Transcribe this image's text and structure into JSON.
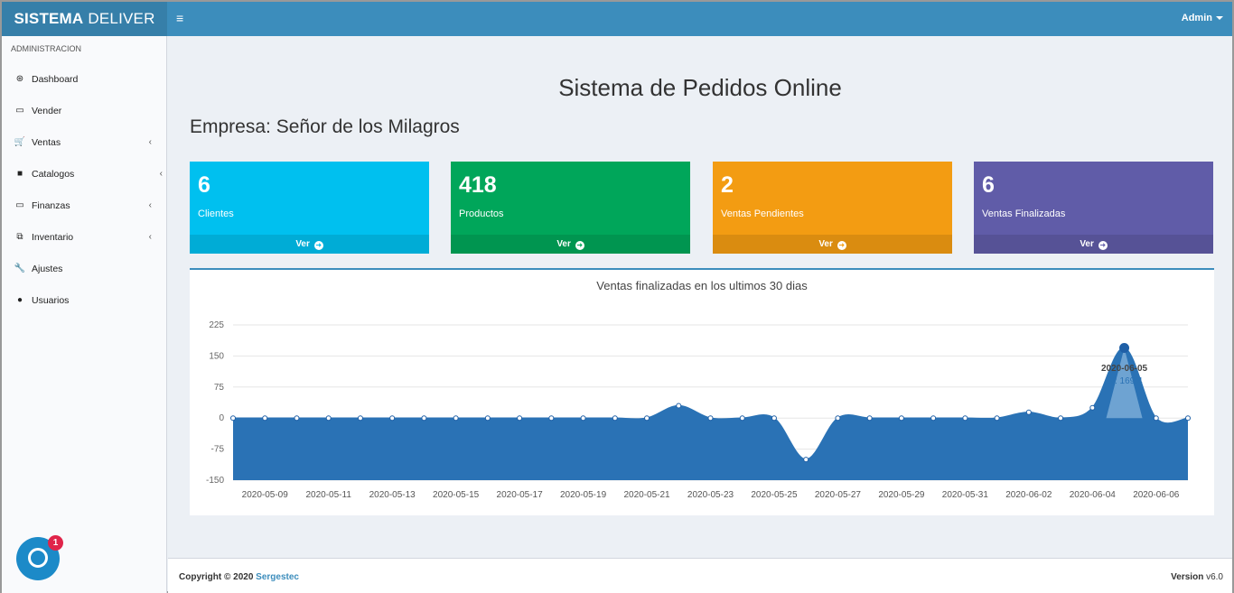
{
  "header": {
    "brand_bold": "SISTEMA",
    "brand_rest": "DELIVER",
    "menu_icon": "≡",
    "user": "Admin"
  },
  "sidebar": {
    "section": "ADMINISTRACION",
    "items": [
      {
        "label": "Dashboard",
        "icon": "dashboard-icon",
        "glyph": "⊛",
        "chevron": false
      },
      {
        "label": "Vender",
        "icon": "money-icon",
        "glyph": "▭",
        "chevron": false
      },
      {
        "label": "Ventas",
        "icon": "cart-icon",
        "glyph": "🛒",
        "chevron": true
      },
      {
        "label": "Catalogos",
        "icon": "folder-icon",
        "glyph": "■",
        "chevron": true
      },
      {
        "label": "Finanzas",
        "icon": "money-icon",
        "glyph": "▭",
        "chevron": true
      },
      {
        "label": "Inventario",
        "icon": "cubes-icon",
        "glyph": "⧉",
        "chevron": true
      },
      {
        "label": "Ajustes",
        "icon": "wrench-icon",
        "glyph": "🔧",
        "chevron": false
      },
      {
        "label": "Usuarios",
        "icon": "user-icon",
        "glyph": "●",
        "chevron": false
      }
    ]
  },
  "main": {
    "title": "Sistema de Pedidos Online",
    "empresa": "Empresa: Señor de los Milagros",
    "boxes": [
      {
        "value": "6",
        "label": "Clientes",
        "link": "Ver",
        "color": "#00c0ef"
      },
      {
        "value": "418",
        "label": "Productos",
        "link": "Ver",
        "color": "#00a65a"
      },
      {
        "value": "2",
        "label": "Ventas Pendientes",
        "link": "Ver",
        "color": "#f39c12"
      },
      {
        "value": "6",
        "label": "Ventas Finalizadas",
        "link": "Ver",
        "color": "#605ca8"
      }
    ]
  },
  "chart_data": {
    "type": "area",
    "title": "Ventas finalizadas en los ultimos 30 dias",
    "ylim": [
      -150,
      225
    ],
    "yticks": [
      225,
      150,
      75,
      0,
      -75,
      -150
    ],
    "x": [
      "2020-05-08",
      "2020-05-09",
      "2020-05-10",
      "2020-05-11",
      "2020-05-12",
      "2020-05-13",
      "2020-05-14",
      "2020-05-15",
      "2020-05-16",
      "2020-05-17",
      "2020-05-18",
      "2020-05-19",
      "2020-05-20",
      "2020-05-21",
      "2020-05-22",
      "2020-05-23",
      "2020-05-24",
      "2020-05-25",
      "2020-05-26",
      "2020-05-27",
      "2020-05-28",
      "2020-05-29",
      "2020-05-30",
      "2020-05-31",
      "2020-06-01",
      "2020-06-02",
      "2020-06-03",
      "2020-06-04",
      "2020-06-05",
      "2020-06-06",
      "2020-06-07"
    ],
    "xticks": [
      "2020-05-09",
      "2020-05-11",
      "2020-05-13",
      "2020-05-15",
      "2020-05-17",
      "2020-05-19",
      "2020-05-21",
      "2020-05-23",
      "2020-05-25",
      "2020-05-27",
      "2020-05-29",
      "2020-05-31",
      "2020-06-02",
      "2020-06-04",
      "2020-06-06"
    ],
    "values": [
      0,
      0,
      0,
      0,
      0,
      0,
      0,
      0,
      0,
      0,
      0,
      0,
      0,
      0,
      30,
      0,
      0,
      0,
      -100,
      0,
      0,
      0,
      0,
      0,
      0,
      14,
      0,
      25,
      169.4,
      0,
      0
    ],
    "color": "#2a72b5",
    "grid": true,
    "tooltip": {
      "date": "2020-06-05",
      "text": "S/: 169.4",
      "index": 28
    }
  },
  "footer": {
    "copyright": "Copyright © 2020",
    "company": "Sergestec",
    "version_label": "Version",
    "version": "v6.0"
  },
  "chat": {
    "badge": "1"
  }
}
